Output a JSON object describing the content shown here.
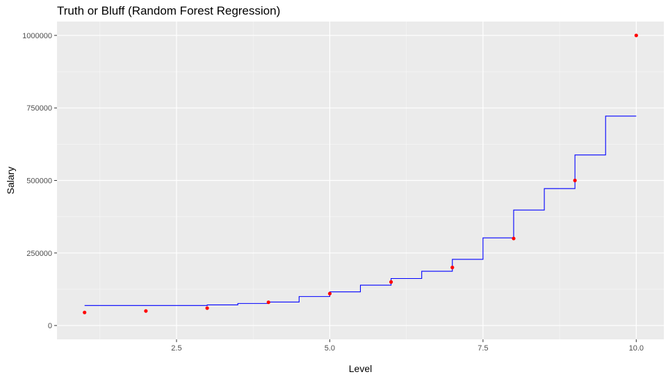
{
  "chart_data": {
    "type": "scatter",
    "title": "Truth or Bluff (Random Forest Regression)",
    "xlabel": "Level",
    "ylabel": "Salary",
    "xlim": [
      0.55,
      10.45
    ],
    "ylim": [
      -47750,
      1047750
    ],
    "x_ticks": [
      2.5,
      5.0,
      7.5,
      10.0
    ],
    "x_tick_labels": [
      "2.5",
      "5.0",
      "7.5",
      "10.0"
    ],
    "y_ticks": [
      0,
      250000,
      500000,
      750000,
      1000000
    ],
    "y_tick_labels": [
      "0",
      "250000",
      "500000",
      "750000",
      "1000000"
    ],
    "grid": true,
    "legend": "none",
    "series": [
      {
        "type": "scatter",
        "color": "#ff0000",
        "x": [
          1,
          2,
          3,
          4,
          5,
          6,
          7,
          8,
          9,
          10
        ],
        "y": [
          45000,
          50000,
          60000,
          80000,
          110000,
          150000,
          200000,
          300000,
          500000,
          1000000
        ]
      },
      {
        "type": "step-line",
        "color": "#0000ff",
        "x": [
          1.0,
          3.0,
          3.5,
          4.0,
          4.5,
          5.0,
          5.5,
          6.0,
          6.5,
          7.0,
          7.5,
          8.0,
          8.5,
          9.0,
          9.5,
          10.0
        ],
        "y": [
          69000,
          71000,
          76000,
          81000,
          100000,
          116000,
          139000,
          162000,
          187000,
          228000,
          302000,
          398000,
          472000,
          588000,
          722000,
          722000
        ]
      }
    ]
  }
}
